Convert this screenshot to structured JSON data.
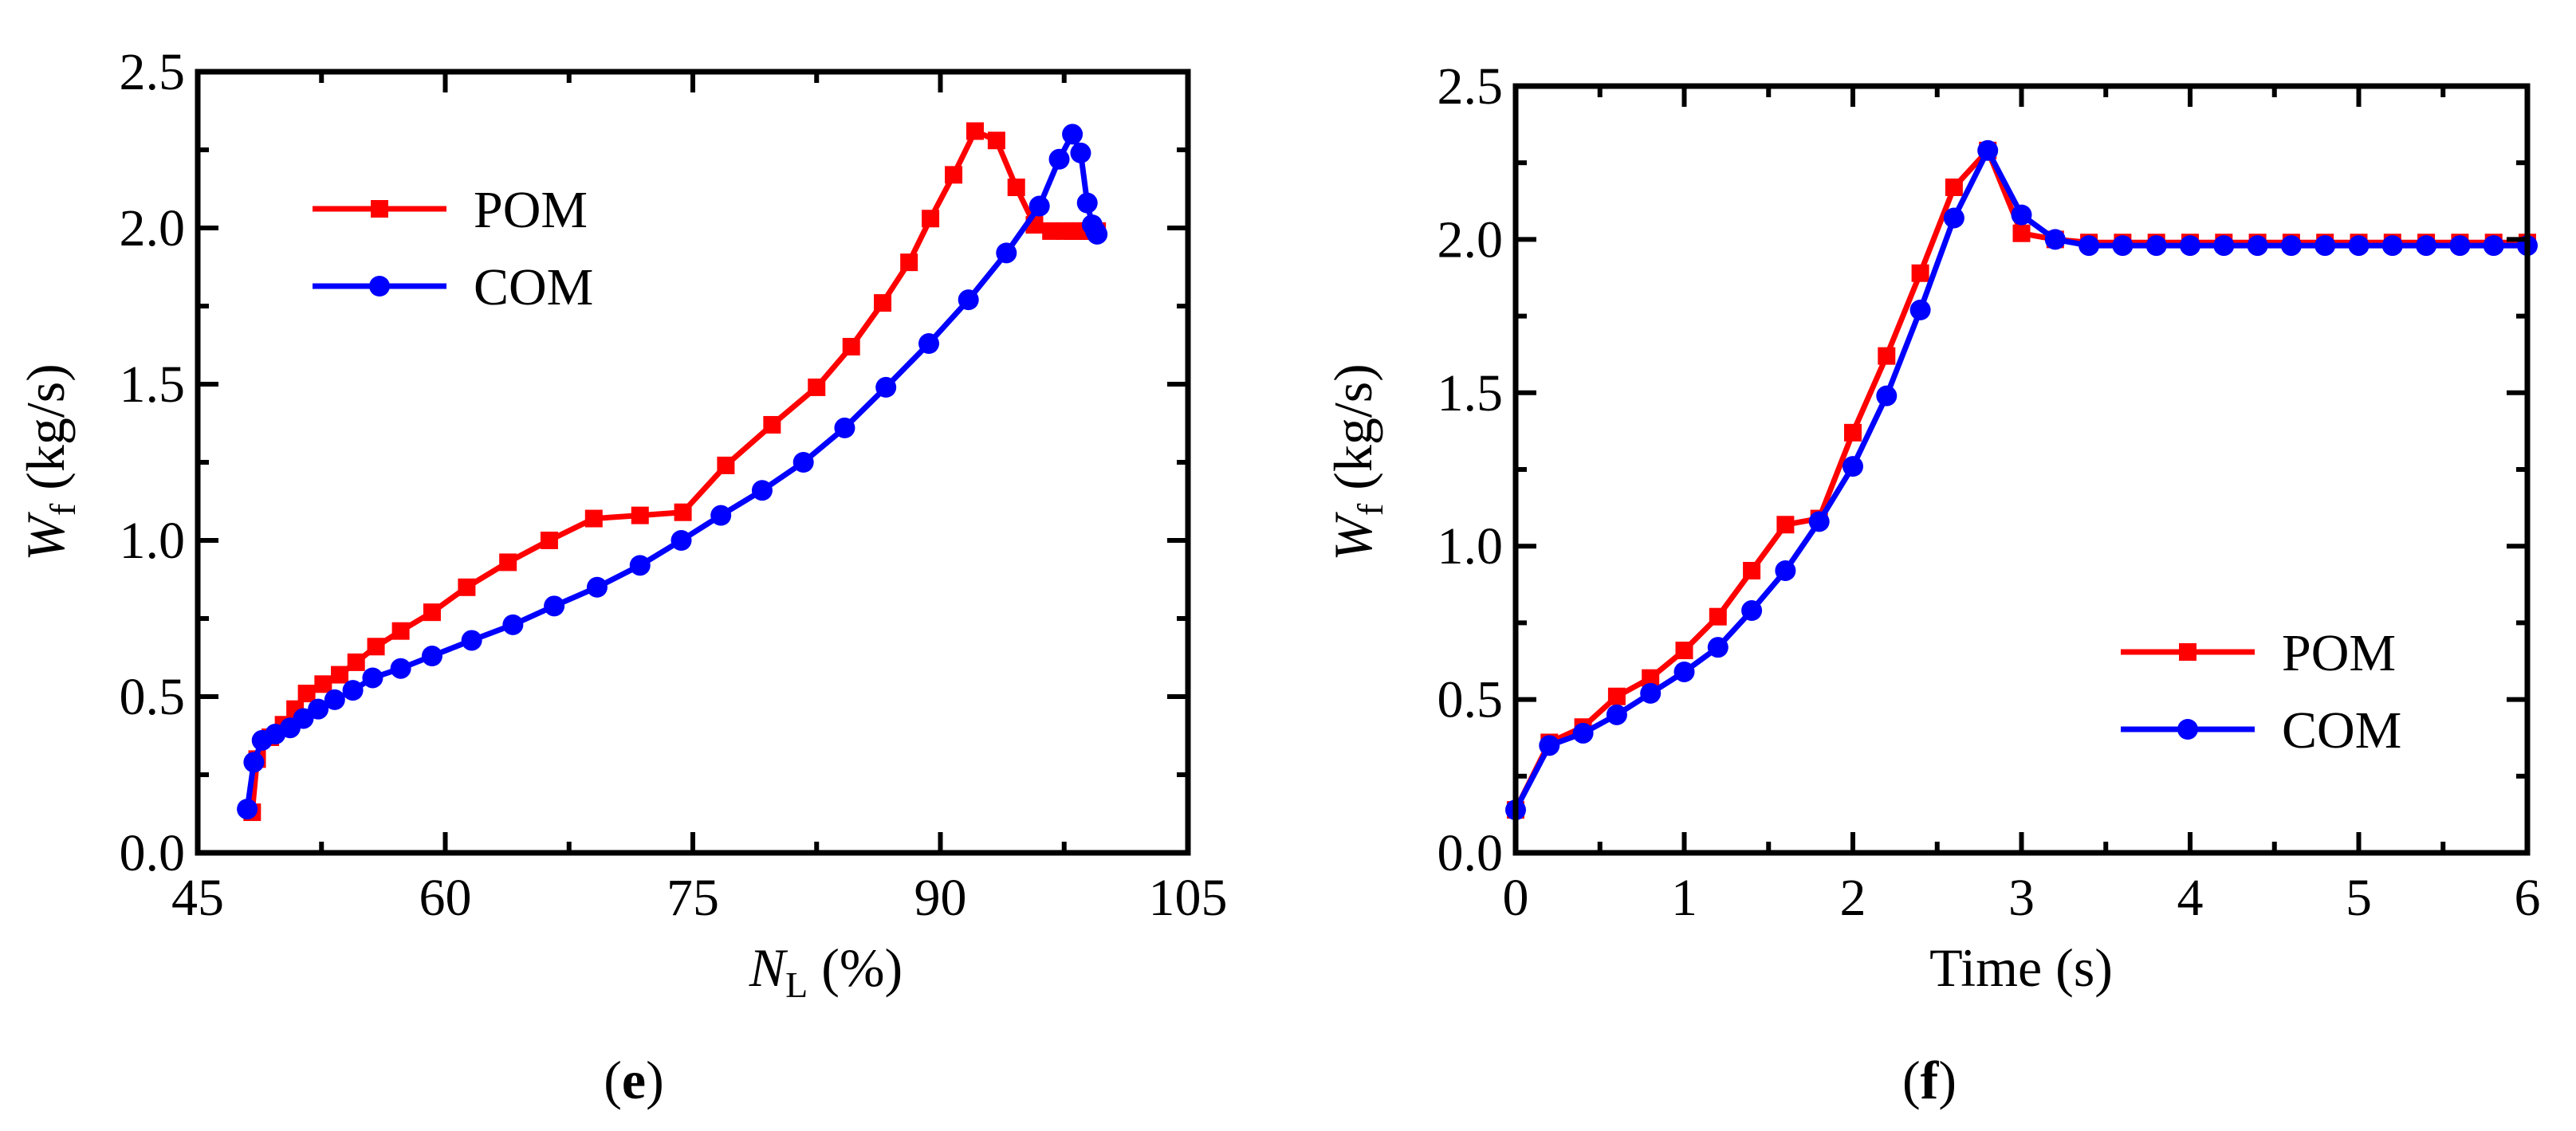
{
  "chart_data": [
    {
      "type": "line",
      "panel": "e",
      "panel_label_open": "(",
      "panel_label_letter": "e",
      "panel_label_close": ")",
      "xlabel_main": "N",
      "xlabel_sub": "L",
      "xlabel_unit": " (%)",
      "ylabel_main": "W",
      "ylabel_sub": "f",
      "ylabel_unit": " (kg/s)",
      "xlim": [
        45,
        105
      ],
      "ylim": [
        0.0,
        2.5
      ],
      "xticks": [
        45,
        60,
        75,
        90,
        105
      ],
      "xtick_labels": [
        "45",
        "60",
        "75",
        "90",
        "105"
      ],
      "yticks": [
        0.0,
        0.5,
        1.0,
        1.5,
        2.0,
        2.5
      ],
      "ytick_labels": [
        "0.0",
        "0.5",
        "1.0",
        "1.5",
        "2.0",
        "2.5"
      ],
      "legend_position": "top-left",
      "series": [
        {
          "name": "POM",
          "color": "#ff0000",
          "marker": "square",
          "x": [
            48.3,
            48.6,
            49.4,
            50.2,
            50.9,
            51.6,
            52.6,
            53.6,
            54.6,
            55.8,
            57.3,
            59.2,
            61.3,
            63.8,
            66.3,
            69.0,
            71.8,
            74.4,
            77.0,
            79.8,
            82.5,
            84.6,
            86.5,
            88.1,
            89.4,
            90.8,
            92.1,
            93.4,
            94.6,
            95.7,
            96.7,
            97.5,
            98.0,
            98.5,
            98.9,
            99.2,
            99.4,
            99.5
          ],
          "y": [
            0.13,
            0.3,
            0.37,
            0.41,
            0.46,
            0.51,
            0.54,
            0.57,
            0.61,
            0.66,
            0.71,
            0.77,
            0.85,
            0.93,
            1.0,
            1.07,
            1.08,
            1.09,
            1.24,
            1.37,
            1.49,
            1.62,
            1.76,
            1.89,
            2.03,
            2.17,
            2.31,
            2.28,
            2.13,
            2.01,
            1.99,
            1.99,
            1.99,
            1.99,
            1.99,
            1.99,
            1.99,
            1.99
          ]
        },
        {
          "name": "COM",
          "color": "#0000ff",
          "marker": "circle",
          "x": [
            48.0,
            48.4,
            48.9,
            49.7,
            50.6,
            51.4,
            52.3,
            53.3,
            54.4,
            55.6,
            57.3,
            59.2,
            61.6,
            64.1,
            66.6,
            69.2,
            71.8,
            74.3,
            76.7,
            79.2,
            81.7,
            84.2,
            86.7,
            89.3,
            91.7,
            94.0,
            96.0,
            97.2,
            98.0,
            98.5,
            98.9,
            99.2,
            99.4,
            99.5
          ],
          "y": [
            0.14,
            0.29,
            0.36,
            0.38,
            0.4,
            0.43,
            0.46,
            0.49,
            0.52,
            0.56,
            0.59,
            0.63,
            0.68,
            0.73,
            0.79,
            0.85,
            0.92,
            1.0,
            1.08,
            1.16,
            1.25,
            1.36,
            1.49,
            1.63,
            1.77,
            1.92,
            2.07,
            2.22,
            2.3,
            2.24,
            2.08,
            2.01,
            1.99,
            1.98
          ]
        }
      ]
    },
    {
      "type": "line",
      "panel": "f",
      "panel_label_open": "(",
      "panel_label_letter": "f",
      "panel_label_close": ")",
      "xlabel": "Time (s)",
      "ylabel_main": "W",
      "ylabel_sub": "f",
      "ylabel_unit": " (kg/s)",
      "xlim": [
        0,
        6
      ],
      "ylim": [
        0.0,
        2.5
      ],
      "xticks": [
        0,
        1,
        2,
        3,
        4,
        5,
        6
      ],
      "xtick_labels": [
        "0",
        "1",
        "2",
        "3",
        "4",
        "5",
        "6"
      ],
      "yticks": [
        0.0,
        0.5,
        1.0,
        1.5,
        2.0,
        2.5
      ],
      "ytick_labels": [
        "0.0",
        "0.5",
        "1.0",
        "1.5",
        "2.0",
        "2.5"
      ],
      "legend_position": "bottom-right",
      "series": [
        {
          "name": "POM",
          "color": "#ff0000",
          "marker": "square",
          "x": [
            0.0,
            0.2,
            0.4,
            0.6,
            0.8,
            1.0,
            1.2,
            1.4,
            1.6,
            1.8,
            2.0,
            2.2,
            2.4,
            2.6,
            2.8,
            3.0,
            3.2,
            3.4,
            3.6,
            3.8,
            4.0,
            4.2,
            4.4,
            4.6,
            4.8,
            5.0,
            5.2,
            5.4,
            5.6,
            5.8,
            6.0
          ],
          "y": [
            0.14,
            0.36,
            0.41,
            0.51,
            0.57,
            0.66,
            0.77,
            0.92,
            1.07,
            1.09,
            1.37,
            1.62,
            1.89,
            2.17,
            2.29,
            2.02,
            2.0,
            1.99,
            1.99,
            1.99,
            1.99,
            1.99,
            1.99,
            1.99,
            1.99,
            1.99,
            1.99,
            1.99,
            1.99,
            1.99,
            1.99
          ]
        },
        {
          "name": "COM",
          "color": "#0000ff",
          "marker": "circle",
          "x": [
            0.0,
            0.2,
            0.4,
            0.6,
            0.8,
            1.0,
            1.2,
            1.4,
            1.6,
            1.8,
            2.0,
            2.2,
            2.4,
            2.6,
            2.8,
            3.0,
            3.2,
            3.4,
            3.6,
            3.8,
            4.0,
            4.2,
            4.4,
            4.6,
            4.8,
            5.0,
            5.2,
            5.4,
            5.6,
            5.8,
            6.0
          ],
          "y": [
            0.14,
            0.35,
            0.39,
            0.45,
            0.52,
            0.59,
            0.67,
            0.79,
            0.92,
            1.08,
            1.26,
            1.49,
            1.77,
            2.07,
            2.29,
            2.08,
            2.0,
            1.98,
            1.98,
            1.98,
            1.98,
            1.98,
            1.98,
            1.98,
            1.98,
            1.98,
            1.98,
            1.98,
            1.98,
            1.98,
            1.98
          ]
        }
      ]
    }
  ]
}
